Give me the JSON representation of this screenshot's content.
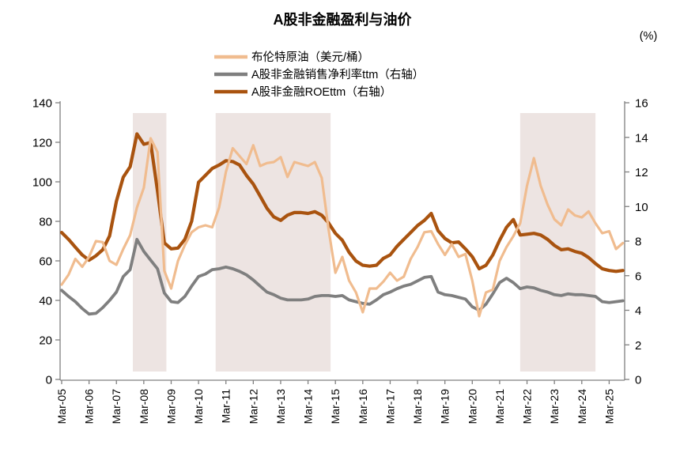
{
  "chart_data": {
    "type": "line",
    "title": "A股非金融盈利与油价",
    "right_axis_unit": "(%)",
    "x_frequency": "quarterly",
    "x_start": "Mar-05",
    "x_end": "Sep-25",
    "x_tick_labels": [
      "Mar-05",
      "Mar-06",
      "Mar-07",
      "Mar-08",
      "Mar-09",
      "Mar-10",
      "Mar-11",
      "Mar-12",
      "Mar-13",
      "Mar-14",
      "Mar-15",
      "Mar-16",
      "Mar-17",
      "Mar-18",
      "Mar-19",
      "Mar-20",
      "Mar-21",
      "Mar-22",
      "Mar-23",
      "Mar-24",
      "Mar-25"
    ],
    "left_axis": {
      "min": 0,
      "max": 140,
      "step": 20,
      "ticks": [
        0,
        20,
        40,
        60,
        80,
        100,
        120,
        140
      ]
    },
    "right_axis": {
      "min": 0,
      "max": 16,
      "step": 2,
      "ticks": [
        0,
        2,
        4,
        6,
        8,
        10,
        12,
        14,
        16
      ]
    },
    "series": [
      {
        "name": "布伦特原油（美元/桶）",
        "axis": "left",
        "color": "#F0BC8F",
        "values": [
          48,
          53,
          61,
          57,
          62,
          70,
          69.5,
          60,
          58,
          66,
          73,
          87,
          97,
          122,
          115,
          55,
          46,
          60,
          68,
          74.5,
          77,
          78,
          77,
          87,
          105,
          117,
          113,
          109,
          118.5,
          108,
          109.5,
          110,
          112.5,
          102.5,
          110,
          109,
          108,
          110,
          102,
          76,
          54,
          62,
          50,
          44,
          34,
          46,
          46,
          49.5,
          54,
          50,
          52,
          61,
          67,
          74.5,
          75,
          68.5,
          63,
          68.5,
          62,
          63.5,
          50,
          32,
          44,
          45.5,
          60,
          67,
          72.5,
          79,
          98,
          112,
          98,
          88.5,
          81,
          78,
          86,
          83,
          82,
          85,
          79,
          74,
          75,
          66,
          69
        ]
      },
      {
        "name": "A股非金融销售净利率ttm（右轴）",
        "axis": "right",
        "color": "#7F7F7F",
        "values": [
          5.15,
          4.8,
          4.5,
          4.1,
          3.78,
          3.82,
          4.15,
          4.57,
          5.05,
          5.95,
          6.35,
          8.1,
          7.4,
          6.9,
          6.4,
          5.0,
          4.5,
          4.45,
          4.8,
          5.4,
          5.95,
          6.1,
          6.35,
          6.4,
          6.5,
          6.4,
          6.25,
          6.05,
          5.75,
          5.4,
          5.05,
          4.9,
          4.7,
          4.6,
          4.6,
          4.6,
          4.65,
          4.8,
          4.85,
          4.85,
          4.8,
          4.85,
          4.6,
          4.5,
          4.4,
          4.35,
          4.6,
          4.9,
          5.05,
          5.25,
          5.4,
          5.5,
          5.7,
          5.9,
          5.95,
          5.05,
          4.9,
          4.85,
          4.75,
          4.65,
          4.2,
          4.0,
          4.35,
          4.95,
          5.6,
          5.85,
          5.6,
          5.25,
          5.35,
          5.3,
          5.15,
          5.05,
          4.9,
          4.85,
          4.95,
          4.9,
          4.9,
          4.85,
          4.8,
          4.5,
          4.45,
          4.5,
          4.55
        ]
      },
      {
        "name": "A股非金融ROEttm（右轴）",
        "axis": "right",
        "color": "#A9530F",
        "values": [
          8.5,
          8.1,
          7.65,
          7.2,
          6.9,
          7.15,
          7.5,
          8.3,
          10.3,
          11.7,
          12.3,
          14.2,
          13.6,
          13.7,
          10.9,
          7.9,
          7.55,
          7.6,
          8.1,
          9.15,
          11.4,
          11.8,
          12.2,
          12.4,
          12.65,
          12.6,
          12.4,
          11.8,
          11.3,
          10.6,
          9.9,
          9.4,
          9.2,
          9.5,
          9.65,
          9.65,
          9.6,
          9.7,
          9.5,
          9.05,
          8.45,
          8.05,
          7.35,
          6.85,
          6.6,
          6.55,
          6.6,
          7.0,
          7.2,
          7.7,
          8.1,
          8.5,
          8.9,
          9.2,
          9.6,
          8.6,
          8.15,
          7.9,
          7.95,
          7.55,
          7.1,
          6.4,
          6.6,
          7.2,
          8.05,
          8.8,
          9.25,
          8.35,
          8.4,
          8.45,
          8.35,
          8.1,
          7.75,
          7.5,
          7.55,
          7.4,
          7.3,
          7.05,
          6.7,
          6.4,
          6.3,
          6.25,
          6.3
        ]
      }
    ],
    "highlight_bands": [
      {
        "from_quarter_index": 10.4,
        "to_quarter_index": 15.3,
        "approx_period": "2007Q4-2008Q4"
      },
      {
        "from_quarter_index": 22.5,
        "to_quarter_index": 39.3,
        "approx_period": "2010Q4-2015Q1"
      },
      {
        "from_quarter_index": 67.0,
        "to_quarter_index": 78.0,
        "approx_period": "2021Q4-2024Q4"
      }
    ],
    "colors": {
      "band": "#EDE4E2",
      "axis": "#808080"
    }
  }
}
